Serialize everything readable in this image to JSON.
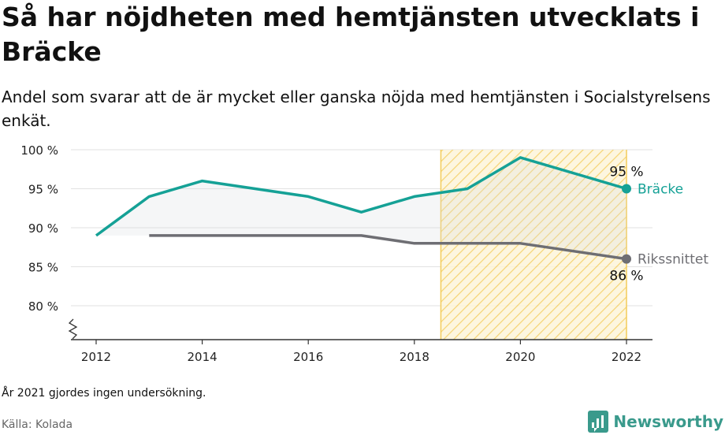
{
  "title": "Så har nöjdheten med hemtjänsten utvecklats i Bräcke",
  "subtitle": "Andel som svarar att de är mycket eller ganska nöjda med hemtjänsten i Socialstyrelsens enkät.",
  "note": "År 2021 gjordes ingen undersökning.",
  "source": "Källa: Kolada",
  "brand": "Newsworthy",
  "colors": {
    "bracke": "#15a196",
    "riks": "#6e6e73",
    "highlight": "#f3cc5a",
    "grid": "#e2e2e2"
  },
  "chart_data": {
    "type": "line",
    "x": [
      2012,
      2013,
      2014,
      2016,
      2017,
      2018,
      2019,
      2020,
      2022
    ],
    "xticks": [
      "2012",
      "2014",
      "2016",
      "2018",
      "2020",
      "2022"
    ],
    "yticks": [
      "80 %",
      "85 %",
      "90 %",
      "95 %",
      "100 %"
    ],
    "ylim": [
      75,
      100
    ],
    "xlim": [
      2011.5,
      2022.5
    ],
    "highlight_range": [
      2018.5,
      2022
    ],
    "series": [
      {
        "name": "Bräcke",
        "color": "#15a196",
        "points": [
          [
            2012,
            89
          ],
          [
            2013,
            94
          ],
          [
            2014,
            96
          ],
          [
            2016,
            94
          ],
          [
            2017,
            92
          ],
          [
            2018,
            94
          ],
          [
            2019,
            95
          ],
          [
            2020,
            99
          ],
          [
            2022,
            95
          ]
        ],
        "end_label": "95 %"
      },
      {
        "name": "Rikssnittet",
        "color": "#6e6e73",
        "points": [
          [
            2013,
            89
          ],
          [
            2014,
            89
          ],
          [
            2016,
            89
          ],
          [
            2017,
            89
          ],
          [
            2018,
            88
          ],
          [
            2019,
            88
          ],
          [
            2020,
            88
          ],
          [
            2022,
            86
          ]
        ],
        "end_label": "86 %"
      }
    ]
  }
}
